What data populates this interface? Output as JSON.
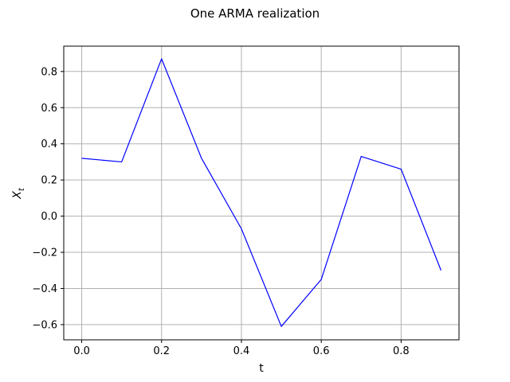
{
  "chart_data": {
    "type": "line",
    "title": "One ARMA realization",
    "xlabel": "t",
    "ylabel_base": "X",
    "ylabel_sub": "t",
    "xlim": [
      -0.045,
      0.945
    ],
    "ylim": [
      -0.684,
      0.94
    ],
    "x_ticks": [
      0.0,
      0.2,
      0.4,
      0.6,
      0.8
    ],
    "x_tick_labels": [
      "0.0",
      "0.2",
      "0.4",
      "0.6",
      "0.8"
    ],
    "y_ticks": [
      -0.6,
      -0.4,
      -0.2,
      0.0,
      0.2,
      0.4,
      0.6,
      0.8
    ],
    "y_tick_labels": [
      "−0.6",
      "−0.4",
      "−0.2",
      "0.0",
      "0.2",
      "0.4",
      "0.6",
      "0.8"
    ],
    "grid": true,
    "series": [
      {
        "color": "#0000ff",
        "x": [
          0.0,
          0.1,
          0.2,
          0.3,
          0.4,
          0.5,
          0.6,
          0.7,
          0.8,
          0.9
        ],
        "y": [
          0.32,
          0.3,
          0.87,
          0.32,
          -0.07,
          -0.61,
          -0.35,
          0.33,
          0.26,
          -0.3
        ]
      }
    ]
  }
}
